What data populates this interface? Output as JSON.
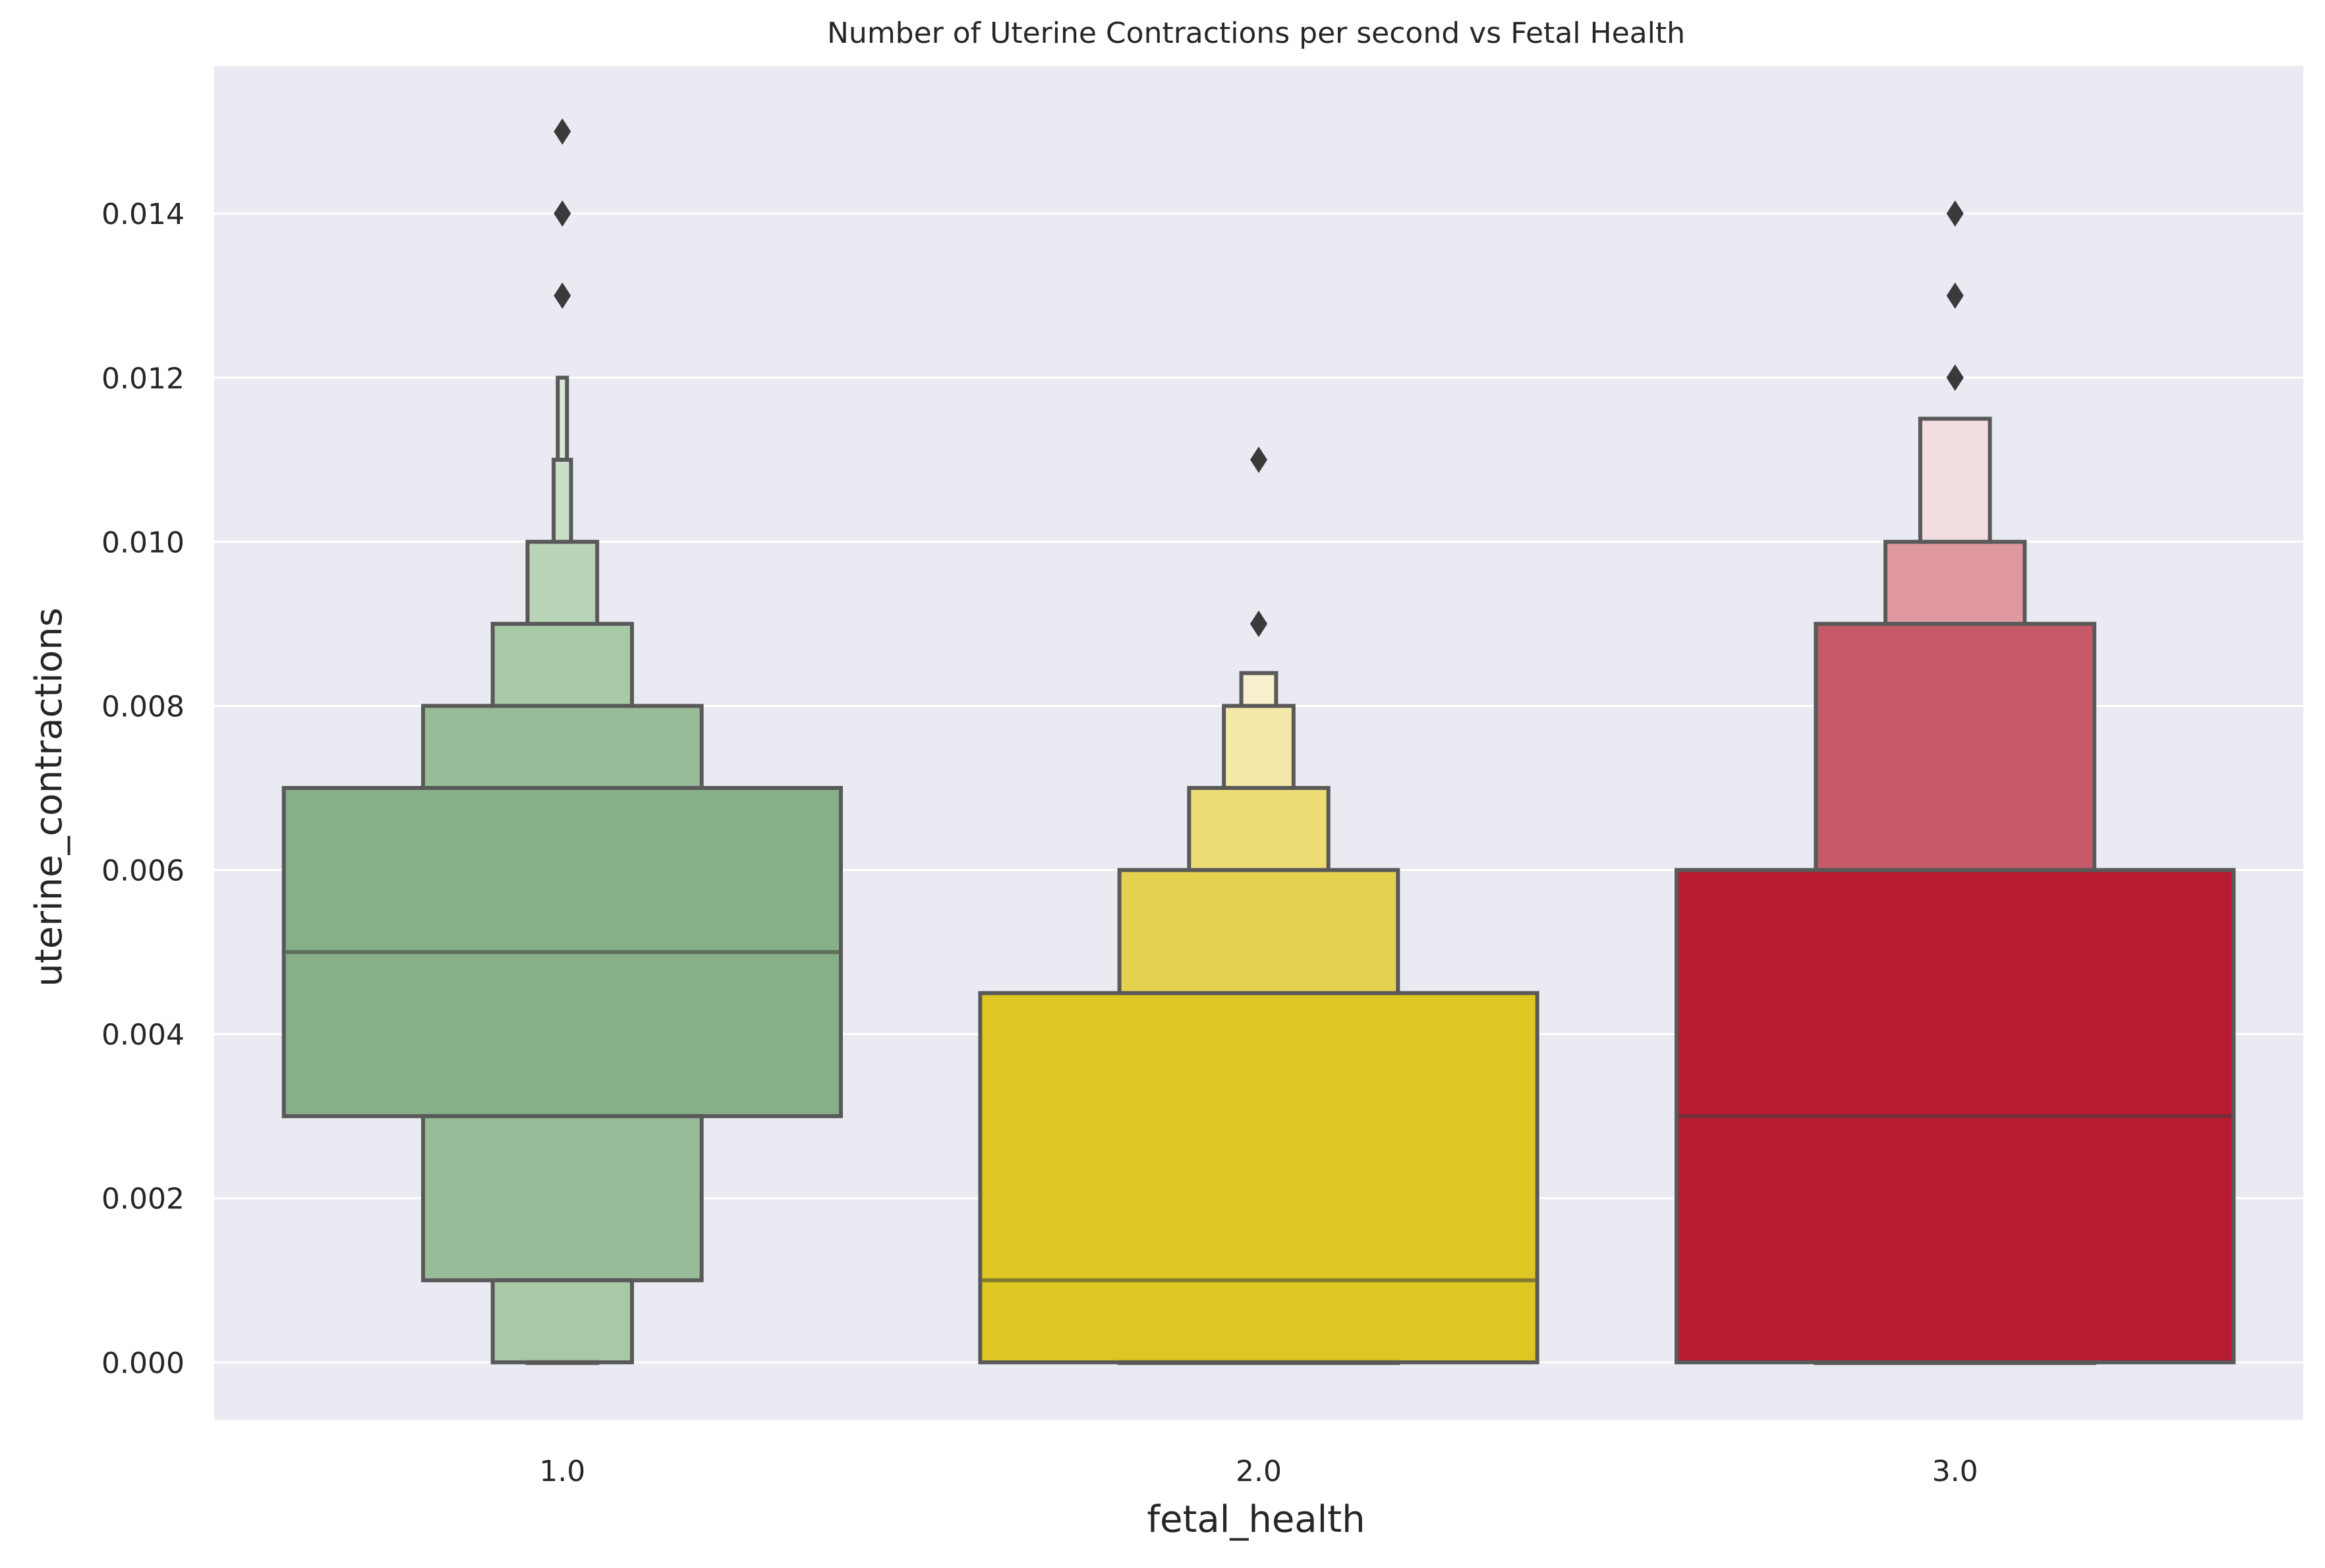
{
  "chart_data": {
    "type": "boxen",
    "title": "Number of Uterine Contractions per second vs Fetal Health",
    "xlabel": "fetal_health",
    "ylabel": "uterine_contractions",
    "ylim": [
      -0.0007,
      0.0158
    ],
    "yticks": [
      0.0,
      0.002,
      0.004,
      0.006,
      0.008,
      0.01,
      0.012,
      0.014
    ],
    "ytick_labels": [
      "0.000",
      "0.002",
      "0.004",
      "0.006",
      "0.008",
      "0.010",
      "0.012",
      "0.014"
    ],
    "grid": true,
    "background": "#eaeaf2",
    "categories": [
      "1.0",
      "2.0",
      "3.0"
    ],
    "groups": [
      {
        "category": "1.0",
        "color": "#87b088",
        "median": 0.005,
        "boxes": [
          {
            "low": 0.003,
            "high": 0.007,
            "width": 0.8,
            "color": "#87b088"
          },
          {
            "low": 0.001,
            "high": 0.003,
            "width": 0.4,
            "color": "#99bc98"
          },
          {
            "low": 0.007,
            "high": 0.008,
            "width": 0.4,
            "color": "#99bc98"
          },
          {
            "low": 0.0,
            "high": 0.001,
            "width": 0.2,
            "color": "#a8c9a6"
          },
          {
            "low": 0.008,
            "high": 0.009,
            "width": 0.2,
            "color": "#a8c9a6"
          },
          {
            "low": 0.0,
            "high": 0.0,
            "width": 0.1,
            "color": "#b9d4b7"
          },
          {
            "low": 0.009,
            "high": 0.01,
            "width": 0.1,
            "color": "#b9d4b7"
          },
          {
            "low": 0.01,
            "high": 0.011,
            "width": 0.025,
            "color": "#cadfc8"
          },
          {
            "low": 0.011,
            "high": 0.012,
            "width": 0.012,
            "color": "#dbe9d9"
          }
        ],
        "outliers": [
          0.013,
          0.014,
          0.015
        ]
      },
      {
        "category": "2.0",
        "color": "#dfc723",
        "median": 0.001,
        "boxes": [
          {
            "low": 0.0,
            "high": 0.0045,
            "width": 0.8,
            "color": "#dfc723"
          },
          {
            "low": 0.0,
            "high": 0.0,
            "width": 0.4,
            "color": "#e4d250"
          },
          {
            "low": 0.0045,
            "high": 0.006,
            "width": 0.4,
            "color": "#e4d250"
          },
          {
            "low": 0.006,
            "high": 0.007,
            "width": 0.2,
            "color": "#ecdd75"
          },
          {
            "low": 0.007,
            "high": 0.008,
            "width": 0.1,
            "color": "#f4e8a8"
          },
          {
            "low": 0.008,
            "high": 0.0084,
            "width": 0.05,
            "color": "#f8f0cc"
          }
        ],
        "outliers": [
          0.009,
          0.009,
          0.011
        ]
      },
      {
        "category": "3.0",
        "color": "#b81b2f",
        "median": 0.003,
        "boxes": [
          {
            "low": 0.0,
            "high": 0.006,
            "width": 0.8,
            "color": "#b81b2f"
          },
          {
            "low": 0.0,
            "high": 0.0,
            "width": 0.4,
            "color": "#c75a68"
          },
          {
            "low": 0.006,
            "high": 0.009,
            "width": 0.4,
            "color": "#c75a68"
          },
          {
            "low": 0.009,
            "high": 0.01,
            "width": 0.2,
            "color": "#df98a0"
          },
          {
            "low": 0.01,
            "high": 0.0115,
            "width": 0.1,
            "color": "#f2dde0"
          }
        ],
        "outliers": [
          0.012,
          0.012,
          0.013,
          0.014
        ]
      }
    ]
  }
}
